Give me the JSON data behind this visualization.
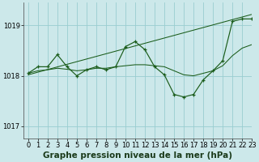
{
  "background_color": "#cce8ea",
  "grid_color": "#99cdd0",
  "line_color": "#1a5c1a",
  "title": "Graphe pression niveau de la mer (hPa)",
  "xlim": [
    -0.5,
    23
  ],
  "ylim": [
    1016.75,
    1019.45
  ],
  "yticks": [
    1017,
    1018,
    1019
  ],
  "xticks": [
    0,
    1,
    2,
    3,
    4,
    5,
    6,
    7,
    8,
    9,
    10,
    11,
    12,
    13,
    14,
    15,
    16,
    17,
    18,
    19,
    20,
    21,
    22,
    23
  ],
  "hours": [
    0,
    1,
    2,
    3,
    4,
    5,
    6,
    7,
    8,
    9,
    10,
    11,
    12,
    13,
    14,
    15,
    16,
    17,
    18,
    19,
    20,
    21,
    22,
    23
  ],
  "jagged_line": [
    1018.05,
    1018.18,
    1018.18,
    1018.42,
    1018.18,
    1018.0,
    1018.12,
    1018.18,
    1018.12,
    1018.18,
    1018.58,
    1018.68,
    1018.52,
    1018.18,
    1018.02,
    1017.63,
    1017.58,
    1017.63,
    1017.92,
    1018.1,
    1018.3,
    1019.08,
    1019.13,
    1019.13
  ],
  "smooth_line": [
    1018.05,
    1018.1,
    1018.12,
    1018.15,
    1018.13,
    1018.1,
    1018.12,
    1018.15,
    1018.15,
    1018.18,
    1018.2,
    1018.22,
    1018.22,
    1018.2,
    1018.18,
    1018.1,
    1018.02,
    1018.0,
    1018.05,
    1018.1,
    1018.2,
    1018.4,
    1018.55,
    1018.62
  ],
  "trend_line": [
    [
      0,
      23
    ],
    [
      1018.02,
      1019.22
    ]
  ],
  "title_fontsize": 7.5,
  "tick_fontsize": 6
}
